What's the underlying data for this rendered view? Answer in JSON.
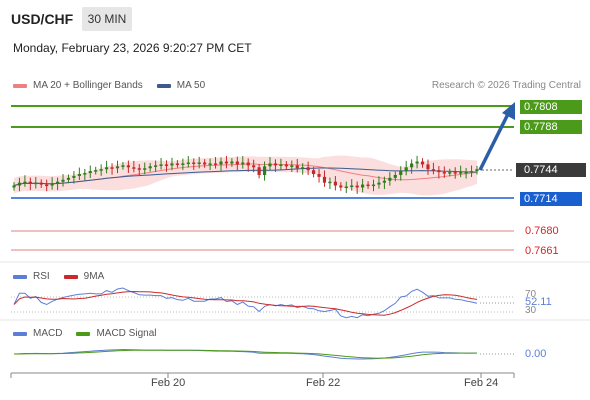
{
  "header": {
    "symbol": "USD/CHF",
    "interval": "30 MIN",
    "datetime": "Monday, February 23, 2026 9:20:27 PM CET"
  },
  "legend": {
    "ma20_label": "MA 20 + Bollinger Bands",
    "ma50_label": "MA 50",
    "credit": "Research © 2026 Trading Central"
  },
  "colors": {
    "resistance": "#4c9a1a",
    "support": "#1a5fd0",
    "secondary_support": "#e08080",
    "ma20": "#f08080",
    "ma50": "#3c5a90",
    "bollinger_fill": "#fbdada",
    "candle_up": "#2e7d1a",
    "candle_down": "#c62828",
    "rsi": "#5b7fd6",
    "rsi_ma": "#cc2a2a",
    "macd": "#5b7fd6",
    "macd_signal": "#4c9a1a",
    "arrow": "#2a5ea8"
  },
  "levels": {
    "r1": "0.7808",
    "r2": "0.7788",
    "last": "0.7744",
    "s1": "0.7714",
    "s2": "0.7680",
    "s3": "0.7661"
  },
  "rsi": {
    "label": "RSI",
    "ma_label": "9MA",
    "level_70": "70",
    "level_30": "30",
    "value": "52.11"
  },
  "macd": {
    "label": "MACD",
    "signal_label": "MACD Signal",
    "value": "0.00"
  },
  "xaxis": {
    "ticks": [
      "Feb 20",
      "Feb 22",
      "Feb 24"
    ]
  },
  "chart_data": {
    "type": "candlestick",
    "series": [
      {
        "name": "USD/CHF",
        "close": [
          0.7727,
          0.773,
          0.7731,
          0.7729,
          0.773,
          0.7728,
          0.7727,
          0.7729,
          0.7731,
          0.7733,
          0.7735,
          0.7737,
          0.7739,
          0.774,
          0.7742,
          0.7743,
          0.7744,
          0.7746,
          0.7745,
          0.7747,
          0.7748,
          0.7746,
          0.7745,
          0.7744,
          0.7745,
          0.7747,
          0.7748,
          0.7749,
          0.7748,
          0.775,
          0.7749,
          0.775,
          0.7751,
          0.775,
          0.7751,
          0.7749,
          0.775,
          0.7749,
          0.7752,
          0.775,
          0.7752,
          0.7749,
          0.7751,
          0.7748,
          0.7746,
          0.7738,
          0.7747,
          0.775,
          0.7748,
          0.7749,
          0.7747,
          0.7748,
          0.7745,
          0.7746,
          0.7743,
          0.7739,
          0.7736,
          0.773,
          0.7731,
          0.7727,
          0.7725,
          0.7726,
          0.7727,
          0.7725,
          0.7728,
          0.7727,
          0.7728,
          0.773,
          0.7732,
          0.7735,
          0.7738,
          0.7742,
          0.7746,
          0.775,
          0.7752,
          0.7749,
          0.7744,
          0.7743,
          0.7741,
          0.774,
          0.7741,
          0.774,
          0.7741,
          0.7741,
          0.7742,
          0.7744
        ]
      },
      {
        "name": "MA 50"
      },
      {
        "name": "MA 20 + Bollinger Bands"
      }
    ],
    "projection": {
      "from": 0.7744,
      "to": 0.7808
    },
    "rsi_value": 52.11,
    "macd_value": 0.0
  }
}
